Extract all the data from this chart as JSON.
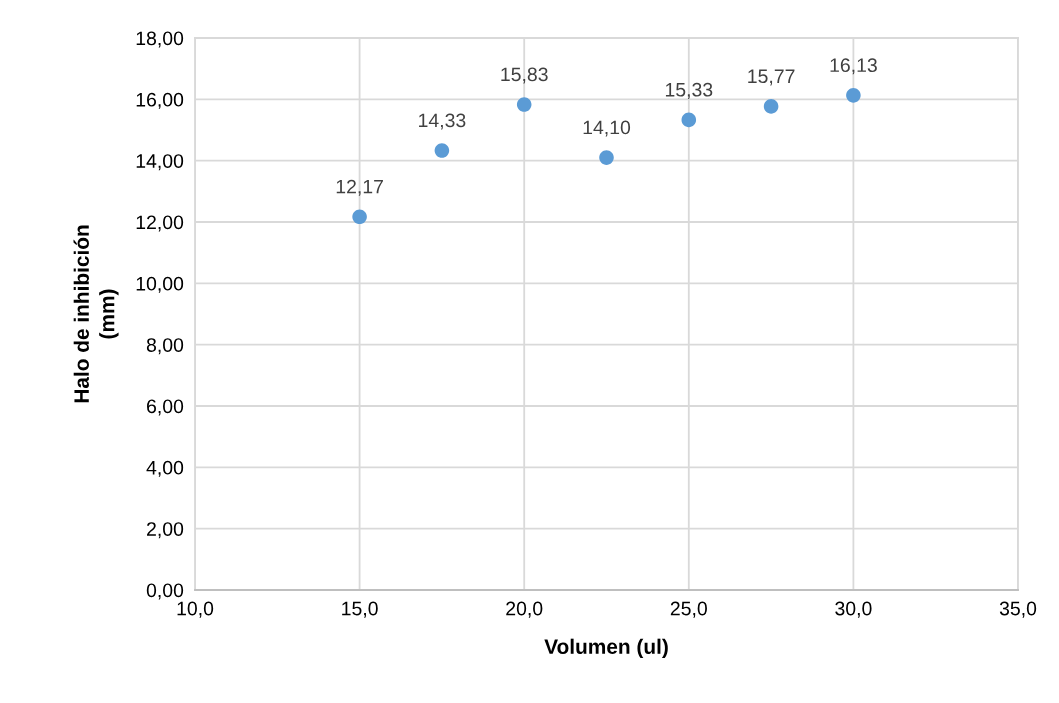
{
  "chart_data": {
    "type": "scatter",
    "xlabel": "Volumen (ul)",
    "ylabel": "Halo de inhibición\n(mm)",
    "x": [
      15,
      17.5,
      20,
      22.5,
      25,
      27.5,
      30
    ],
    "values": [
      12.17,
      14.33,
      15.83,
      14.1,
      15.33,
      15.77,
      16.13
    ],
    "value_labels": [
      "12,17",
      "14,33",
      "15,83",
      "14,10",
      "15,33",
      "15,77",
      "16,13"
    ],
    "color": "#5b9bd5",
    "marker": "circle",
    "grid": true,
    "legend": false,
    "xlim": [
      10,
      35
    ],
    "ylim": [
      0,
      18
    ],
    "xticks": [
      {
        "value": 10,
        "label": "10,0"
      },
      {
        "value": 15,
        "label": "15,0"
      },
      {
        "value": 20,
        "label": "20,0"
      },
      {
        "value": 25,
        "label": "25,0"
      },
      {
        "value": 30,
        "label": "30,0"
      },
      {
        "value": 35,
        "label": "35,0"
      }
    ],
    "yticks": [
      {
        "value": 0,
        "label": "0,00"
      },
      {
        "value": 2,
        "label": "2,00"
      },
      {
        "value": 4,
        "label": "4,00"
      },
      {
        "value": 6,
        "label": "6,00"
      },
      {
        "value": 8,
        "label": "8,00"
      },
      {
        "value": 10,
        "label": "10,00"
      },
      {
        "value": 12,
        "label": "12,00"
      },
      {
        "value": 14,
        "label": "14,00"
      },
      {
        "value": 16,
        "label": "16,00"
      },
      {
        "value": 18,
        "label": "18,00"
      }
    ]
  }
}
